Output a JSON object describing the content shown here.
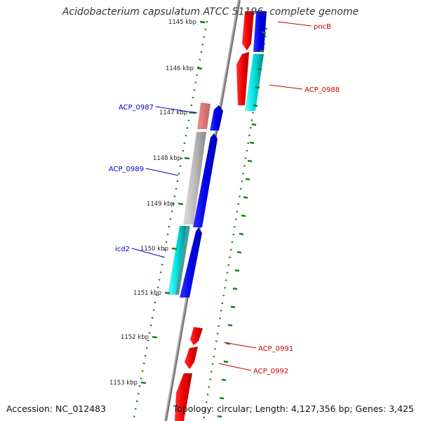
{
  "title": "Acidobacterium capsulatum ATCC 51196, complete genome",
  "footer": {
    "accession": "Accession: NC_012483",
    "summary": "Topology: circular; Length: 4,127,356 bp; Genes: 3,425"
  },
  "ticks": [
    "1145 kbp",
    "1146 kbp",
    "1147 kbp",
    "1148 kbp",
    "1149 kbp",
    "1150 kbp",
    "1151 kbp",
    "1152 kbp",
    "1153 kbp"
  ],
  "gene_labels": [
    {
      "text": "pncB",
      "side": "right"
    },
    {
      "text": "ACP_0988",
      "side": "right"
    },
    {
      "text": "ACP_0987",
      "side": "left"
    },
    {
      "text": "ACP_0989",
      "side": "left"
    },
    {
      "text": "icd2",
      "side": "left"
    },
    {
      "text": "ACP_0991",
      "side": "right"
    },
    {
      "text": "ACP_0992",
      "side": "right"
    }
  ],
  "colors": {
    "forward_cds": "#0000ff",
    "reverse_cds": "#ff0000",
    "rrna_like": "#00cccc",
    "pseudo": "#aaaaaa",
    "faded_red": "#e07070",
    "backbone": "#888888",
    "tick": "#1a7f1a",
    "label_blue": "#0000cc",
    "label_red": "#cc0000"
  }
}
